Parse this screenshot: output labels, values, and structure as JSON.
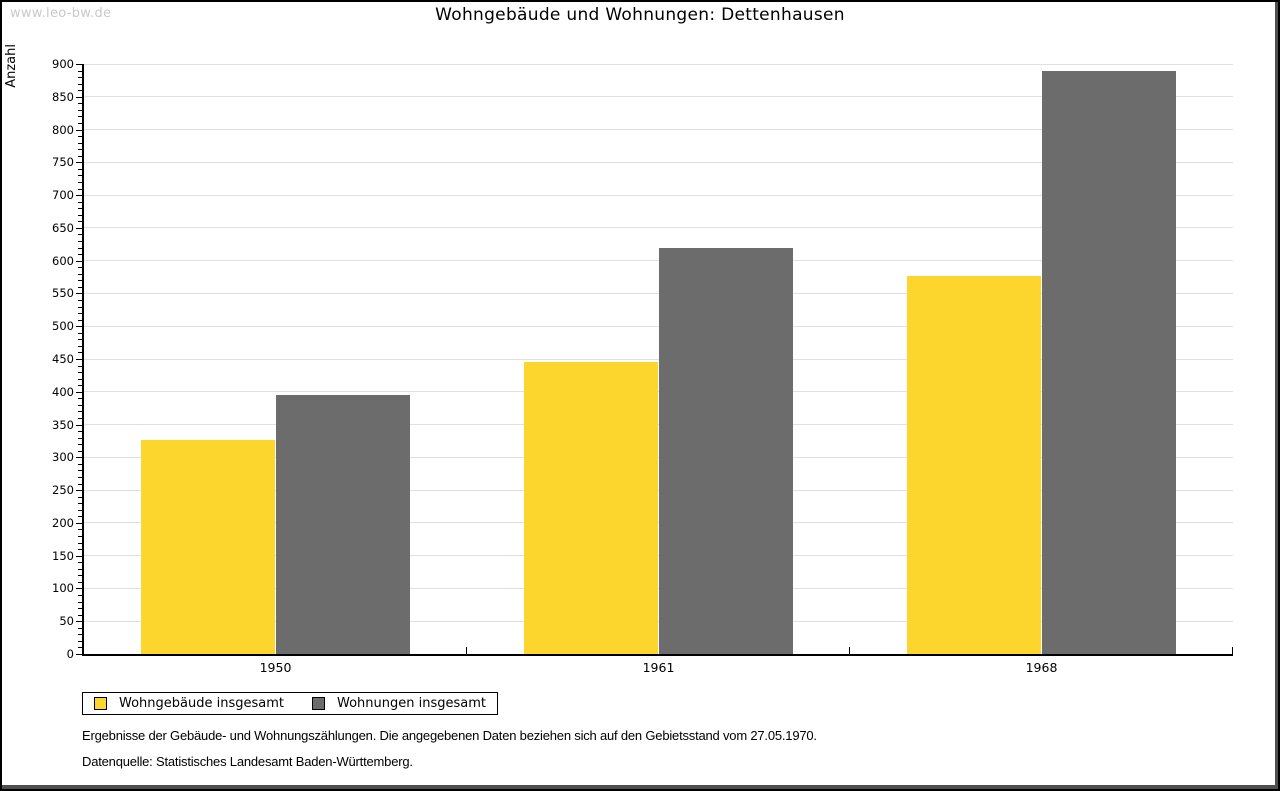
{
  "watermark": "www.leo-bw.de",
  "header": {
    "title": "Wohngebäude und Wohnungen: Dettenhausen"
  },
  "chart_data": {
    "type": "bar",
    "title": "Wohngebäude und Wohnungen: Dettenhausen",
    "ylabel": "Anzahl",
    "xlabel": "",
    "categories": [
      "1950",
      "1961",
      "1968"
    ],
    "series": [
      {
        "key": "wohngebaeude",
        "name": "Wohngebäude insgesamt",
        "color": "#FCD52D",
        "values": [
          327,
          445,
          577
        ]
      },
      {
        "key": "wohnungen",
        "name": "Wohnungen insgesamt",
        "color": "#6C6C6C",
        "values": [
          395,
          620,
          890
        ]
      }
    ],
    "ylim": [
      0,
      900
    ],
    "ytick_step": 50,
    "yminor_step": 10,
    "grid": "horizontal-major-only",
    "legend_position": "bottom-left"
  },
  "footnotes": {
    "line1": "Ergebnisse der Gebäude- und Wohnungszählungen. Die angegebenen Daten beziehen sich auf den Gebietsstand vom 27.05.1970.",
    "line2": "Datenquelle: Statistisches Landesamt Baden-Württemberg."
  },
  "colors": {
    "background": "#FFFFFF",
    "bar_wohngebaeude": "#FCD52D",
    "bar_wohnungen": "#6C6C6C",
    "gridline": "#E0E0E0",
    "axis": "#000000",
    "watermark_text": "#C9C9C9",
    "frame_shadow": "#4F4F4F"
  }
}
